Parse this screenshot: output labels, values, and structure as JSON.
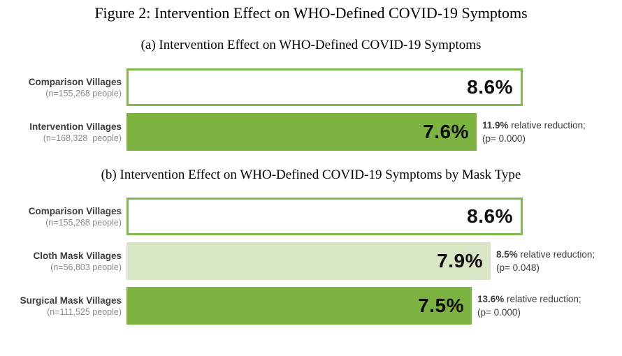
{
  "figure": {
    "title": "Figure 2: Intervention Effect on WHO-Defined COVID-19 Symptoms"
  },
  "colors": {
    "solid_green": "#7db340",
    "light_green": "#d9e6c5",
    "outline_border_green": "#83ba4f",
    "label_text": "#3d3d3d",
    "sublabel_text": "#8a8a8a"
  },
  "chart_data": [
    {
      "type": "bar",
      "orientation": "horizontal",
      "title": "(a) Intervention Effect on WHO-Defined COVID-19 Symptoms",
      "unit": "%",
      "xlim": [
        0,
        8.6
      ],
      "grid": false,
      "bars": [
        {
          "label": "Comparison Villages",
          "sublabel": "(n=155,268 people)",
          "value": 8.6,
          "value_label": "8.6%",
          "style": "outline"
        },
        {
          "label": "Intervention Villages",
          "sublabel": "(n=168,328  people)",
          "value": 7.6,
          "value_label": "7.6%",
          "style": "solid",
          "annotation_bold": "11.9%",
          "annotation_rest": " relative reduction;",
          "annotation_line2": "(p= 0.000)"
        }
      ]
    },
    {
      "type": "bar",
      "orientation": "horizontal",
      "title": "(b) Intervention Effect on WHO-Defined COVID-19 Symptoms by Mask Type",
      "unit": "%",
      "xlim": [
        0,
        8.6
      ],
      "grid": false,
      "bars": [
        {
          "label": "Comparison Villages",
          "sublabel": "(n=155,268 people)",
          "value": 8.6,
          "value_label": "8.6%",
          "style": "outline"
        },
        {
          "label": "Cloth Mask Villages",
          "sublabel": "(n=56,803 people)",
          "value": 7.9,
          "value_label": "7.9%",
          "style": "light",
          "annotation_bold": "8.5%",
          "annotation_rest": " relative reduction;",
          "annotation_line2": "(p= 0.048)"
        },
        {
          "label": "Surgical Mask Villages",
          "sublabel": "(n=111,525 people)",
          "value": 7.5,
          "value_label": "7.5%",
          "style": "solid",
          "annotation_bold": "13.6%",
          "annotation_rest": " relative reduction;",
          "annotation_line2": "(p= 0.000)"
        }
      ]
    }
  ]
}
